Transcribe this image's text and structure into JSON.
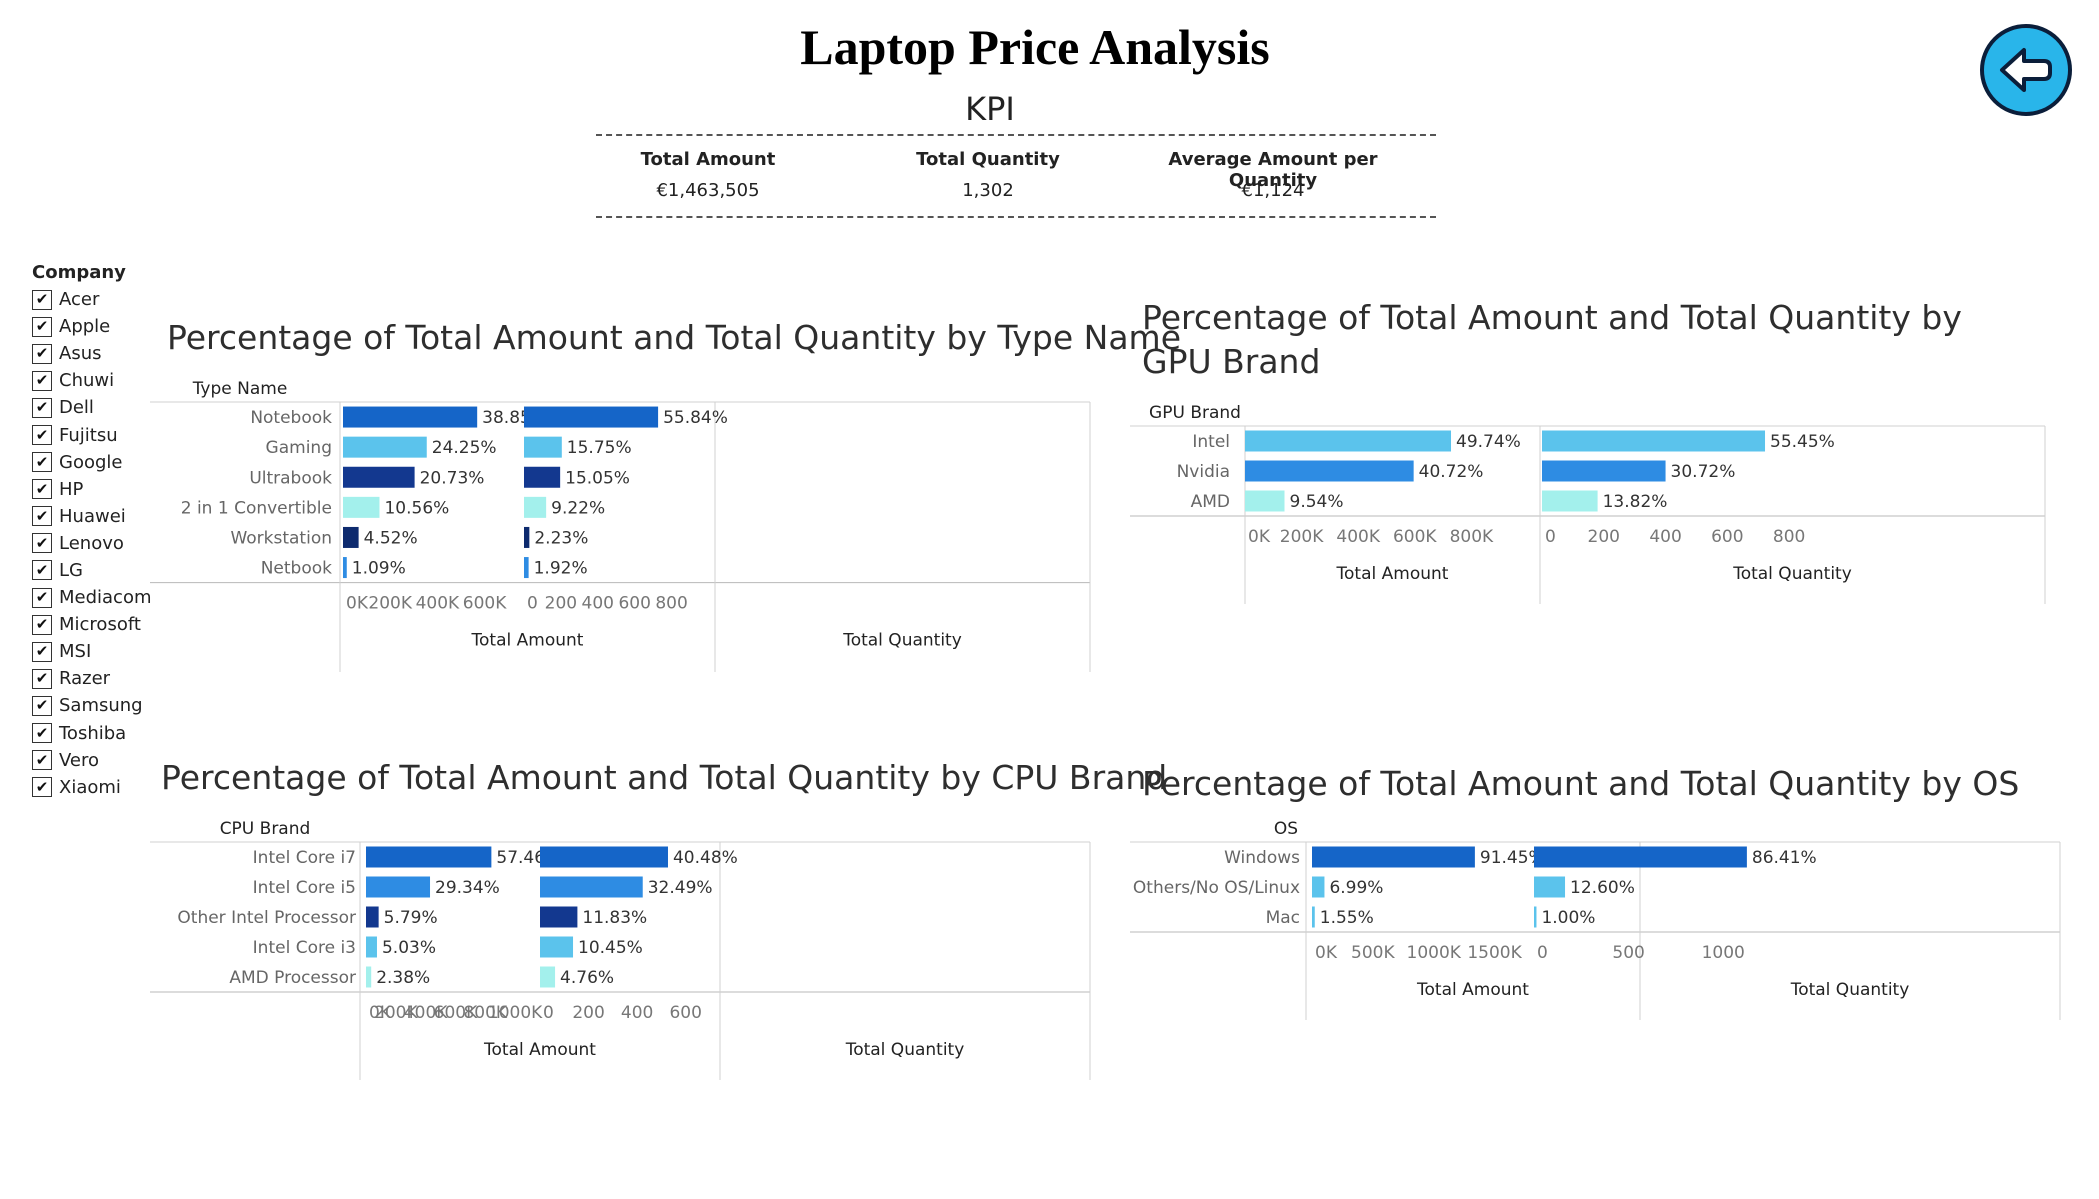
{
  "title": "Laptop Price Analysis",
  "kpi": {
    "title": "KPI",
    "items": [
      {
        "label": "Total Amount",
        "value": "€1,463,505"
      },
      {
        "label": "Total Quantity",
        "value": "1,302"
      },
      {
        "label": "Average Amount per Quantity",
        "value": "€1,124"
      }
    ]
  },
  "back_button": {
    "icon": "arrow-left-icon"
  },
  "company_filter": {
    "title": "Company",
    "items": [
      "Acer",
      "Apple",
      "Asus",
      "Chuwi",
      "Dell",
      "Fujitsu",
      "Google",
      "HP",
      "Huawei",
      "Lenovo",
      "LG",
      "Mediacom",
      "Microsoft",
      "MSI",
      "Razer",
      "Samsung",
      "Toshiba",
      "Vero",
      "Xiaomi"
    ]
  },
  "colors": {
    "dark_navy": "#0d2a6e",
    "navy": "#13388f",
    "blue": "#1565c8",
    "mid_blue": "#2e8ce3",
    "sky": "#5bc3ec",
    "light_aqua": "#a3f0ec"
  },
  "chart_data": [
    {
      "type": "bar",
      "title": "Percentage of Total Amount and Total Quantity by Type Name",
      "dimension": "Type Name",
      "categories": [
        "Notebook",
        "Gaming",
        "Ultrabook",
        "2 in 1 Convertible",
        "Workstation",
        "Netbook"
      ],
      "colors": [
        "#1565c8",
        "#5bc3ec",
        "#13388f",
        "#a3f0ec",
        "#0d2a6e",
        "#2e8ce3"
      ],
      "series": [
        {
          "name": "Total Amount",
          "values": [
            568561,
            354899,
            303388,
            154546,
            66151,
            15952
          ],
          "labels": [
            "38.85%",
            "24.25%",
            "20.73%",
            "10.56%",
            "4.52%",
            "1.09%"
          ],
          "xlim": [
            0,
            750000
          ],
          "ticks": [
            0,
            200000,
            400000,
            600000
          ],
          "tick_labels": [
            "0K",
            "200K",
            "400K",
            "600K"
          ]
        },
        {
          "name": "Total Quantity",
          "values": [
            727,
            205,
            196,
            120,
            29,
            25
          ],
          "labels": [
            "55.84%",
            "15.75%",
            "15.05%",
            "9.22%",
            "2.23%",
            "1.92%"
          ],
          "xlim": [
            0,
            900
          ],
          "ticks": [
            0,
            200,
            400,
            600,
            800
          ],
          "tick_labels": [
            "0",
            "200",
            "400",
            "600",
            "800"
          ]
        }
      ]
    },
    {
      "type": "bar",
      "title": "Percentage of Total Amount and Total Quantity by GPU Brand",
      "dimension": "GPU Brand",
      "categories": [
        "Intel",
        "Nvidia",
        "AMD"
      ],
      "colors": [
        "#5bc3ec",
        "#2e8ce3",
        "#a3f0ec"
      ],
      "series": [
        {
          "name": "Total Amount",
          "values": [
            727947,
            595919,
            139638
          ],
          "labels": [
            "49.74%",
            "40.72%",
            "9.54%"
          ],
          "xlim": [
            0,
            1000000
          ],
          "ticks": [
            0,
            200000,
            400000,
            600000,
            800000
          ],
          "tick_labels": [
            "0K",
            "200K",
            "400K",
            "600K",
            "800K"
          ]
        },
        {
          "name": "Total Quantity",
          "values": [
            722,
            400,
            180
          ],
          "labels": [
            "55.45%",
            "30.72%",
            "13.82%"
          ],
          "xlim": [
            0,
            900
          ],
          "ticks": [
            0,
            200,
            400,
            600,
            800
          ],
          "tick_labels": [
            "0",
            "200",
            "400",
            "600",
            "800"
          ]
        }
      ]
    },
    {
      "type": "bar",
      "title": "Percentage of Total Amount and Total Quantity by CPU Brand",
      "dimension": "CPU Brand",
      "categories": [
        "Intel Core i7",
        "Intel Core i5",
        "Other Intel Processor",
        "Intel Core i3",
        "AMD Processor"
      ],
      "colors": [
        "#1565c8",
        "#2e8ce3",
        "#13388f",
        "#5bc3ec",
        "#a3f0ec"
      ],
      "series": [
        {
          "name": "Total Amount",
          "values": [
            840936,
            429394,
            84737,
            73614,
            34831
          ],
          "labels": [
            "57.46%",
            "29.34%",
            "5.79%",
            "5.03%",
            "2.38%"
          ],
          "xlim": [
            0,
            1100000
          ],
          "ticks": [
            0,
            200000,
            400000,
            600000,
            800000,
            1000000
          ],
          "tick_labels": [
            "0K",
            "200K",
            "400K",
            "600K",
            "800K",
            "1000K"
          ]
        },
        {
          "name": "Total Quantity",
          "values": [
            527,
            423,
            154,
            136,
            62
          ],
          "labels": [
            "40.48%",
            "32.49%",
            "11.83%",
            "10.45%",
            "4.76%"
          ],
          "xlim": [
            0,
            700
          ],
          "ticks": [
            0,
            200,
            400,
            600
          ],
          "tick_labels": [
            "0",
            "200",
            "400",
            "600"
          ]
        }
      ]
    },
    {
      "type": "bar",
      "title": "Percentage of Total Amount and Total Quantity by OS",
      "dimension": "OS",
      "categories": [
        "Windows",
        "Others/No OS/Linux",
        "Mac"
      ],
      "colors": [
        "#1565c8",
        "#5bc3ec",
        "#5bc3ec"
      ],
      "series": [
        {
          "name": "Total Amount",
          "values": [
            1338213,
            102299,
            22684
          ],
          "labels": [
            "91.45%",
            "6.99%",
            "1.55%"
          ],
          "xlim": [
            0,
            1750000
          ],
          "ticks": [
            0,
            500000,
            1000000,
            1500000
          ],
          "tick_labels": [
            "0K",
            "500K",
            "1000K",
            "1500K"
          ]
        },
        {
          "name": "Total Quantity",
          "values": [
            1125,
            164,
            13
          ],
          "labels": [
            "86.41%",
            "12.60%",
            "1.00%"
          ],
          "xlim": [
            0,
            1300
          ],
          "ticks": [
            0,
            500,
            1000
          ],
          "tick_labels": [
            "0",
            "500",
            "1000"
          ]
        }
      ]
    }
  ]
}
